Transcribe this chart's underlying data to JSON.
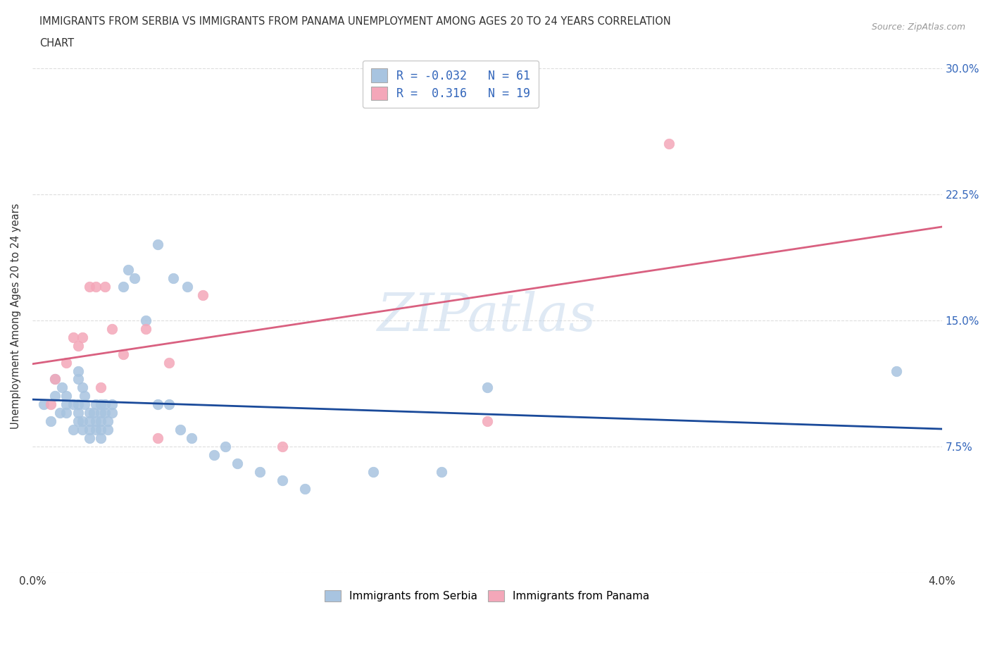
{
  "title_line1": "IMMIGRANTS FROM SERBIA VS IMMIGRANTS FROM PANAMA UNEMPLOYMENT AMONG AGES 20 TO 24 YEARS CORRELATION",
  "title_line2": "CHART",
  "source": "Source: ZipAtlas.com",
  "serbia_R": -0.032,
  "serbia_N": 61,
  "panama_R": 0.316,
  "panama_N": 19,
  "serbia_color": "#a8c4e0",
  "panama_color": "#f4a7b9",
  "serbia_line_color": "#1a4a9a",
  "panama_line_color": "#d96080",
  "serbia_x": [
    0.0005,
    0.0008,
    0.001,
    0.001,
    0.0012,
    0.0013,
    0.0015,
    0.0015,
    0.0015,
    0.0018,
    0.0018,
    0.002,
    0.002,
    0.002,
    0.002,
    0.002,
    0.0022,
    0.0022,
    0.0022,
    0.0023,
    0.0023,
    0.0025,
    0.0025,
    0.0025,
    0.0025,
    0.0027,
    0.0028,
    0.0028,
    0.0028,
    0.003,
    0.003,
    0.003,
    0.003,
    0.003,
    0.0032,
    0.0032,
    0.0033,
    0.0033,
    0.0035,
    0.0035,
    0.004,
    0.0042,
    0.0045,
    0.005,
    0.0055,
    0.006,
    0.0065,
    0.007,
    0.008,
    0.0085,
    0.009,
    0.01,
    0.011,
    0.012,
    0.015,
    0.018,
    0.0055,
    0.0062,
    0.0068,
    0.02,
    0.038
  ],
  "serbia_y": [
    0.1,
    0.09,
    0.115,
    0.105,
    0.095,
    0.11,
    0.1,
    0.105,
    0.095,
    0.085,
    0.1,
    0.095,
    0.09,
    0.115,
    0.12,
    0.1,
    0.11,
    0.09,
    0.085,
    0.1,
    0.105,
    0.095,
    0.085,
    0.08,
    0.09,
    0.095,
    0.1,
    0.085,
    0.09,
    0.095,
    0.1,
    0.085,
    0.08,
    0.09,
    0.1,
    0.095,
    0.085,
    0.09,
    0.095,
    0.1,
    0.17,
    0.18,
    0.175,
    0.15,
    0.1,
    0.1,
    0.085,
    0.08,
    0.07,
    0.075,
    0.065,
    0.06,
    0.055,
    0.05,
    0.06,
    0.06,
    0.195,
    0.175,
    0.17,
    0.11,
    0.12
  ],
  "panama_x": [
    0.0008,
    0.001,
    0.0015,
    0.0018,
    0.002,
    0.0022,
    0.0025,
    0.0028,
    0.003,
    0.0032,
    0.0035,
    0.004,
    0.005,
    0.0055,
    0.006,
    0.0075,
    0.011,
    0.02,
    0.028
  ],
  "panama_y": [
    0.1,
    0.115,
    0.125,
    0.14,
    0.135,
    0.14,
    0.17,
    0.17,
    0.11,
    0.17,
    0.145,
    0.13,
    0.145,
    0.08,
    0.125,
    0.165,
    0.075,
    0.09,
    0.255
  ],
  "xlim": [
    0.0,
    0.04
  ],
  "ylim": [
    0.0,
    0.305
  ],
  "yticks": [
    0.0,
    0.075,
    0.15,
    0.225,
    0.3
  ],
  "ytick_labels_right": [
    "",
    "7.5%",
    "15.0%",
    "22.5%",
    "30.0%"
  ],
  "xticks": [
    0.0,
    0.01,
    0.02,
    0.03,
    0.04
  ],
  "xtick_labels_outer": [
    "0.0%",
    "",
    "",
    "",
    "4.0%"
  ],
  "ylabel": "Unemployment Among Ages 20 to 24 years",
  "watermark": "ZIPatlas",
  "background_color": "#ffffff",
  "grid_color": "#dddddd",
  "tick_color": "#3366bb",
  "serbia_legend": "Immigrants from Serbia",
  "panama_legend": "Immigrants from Panama"
}
